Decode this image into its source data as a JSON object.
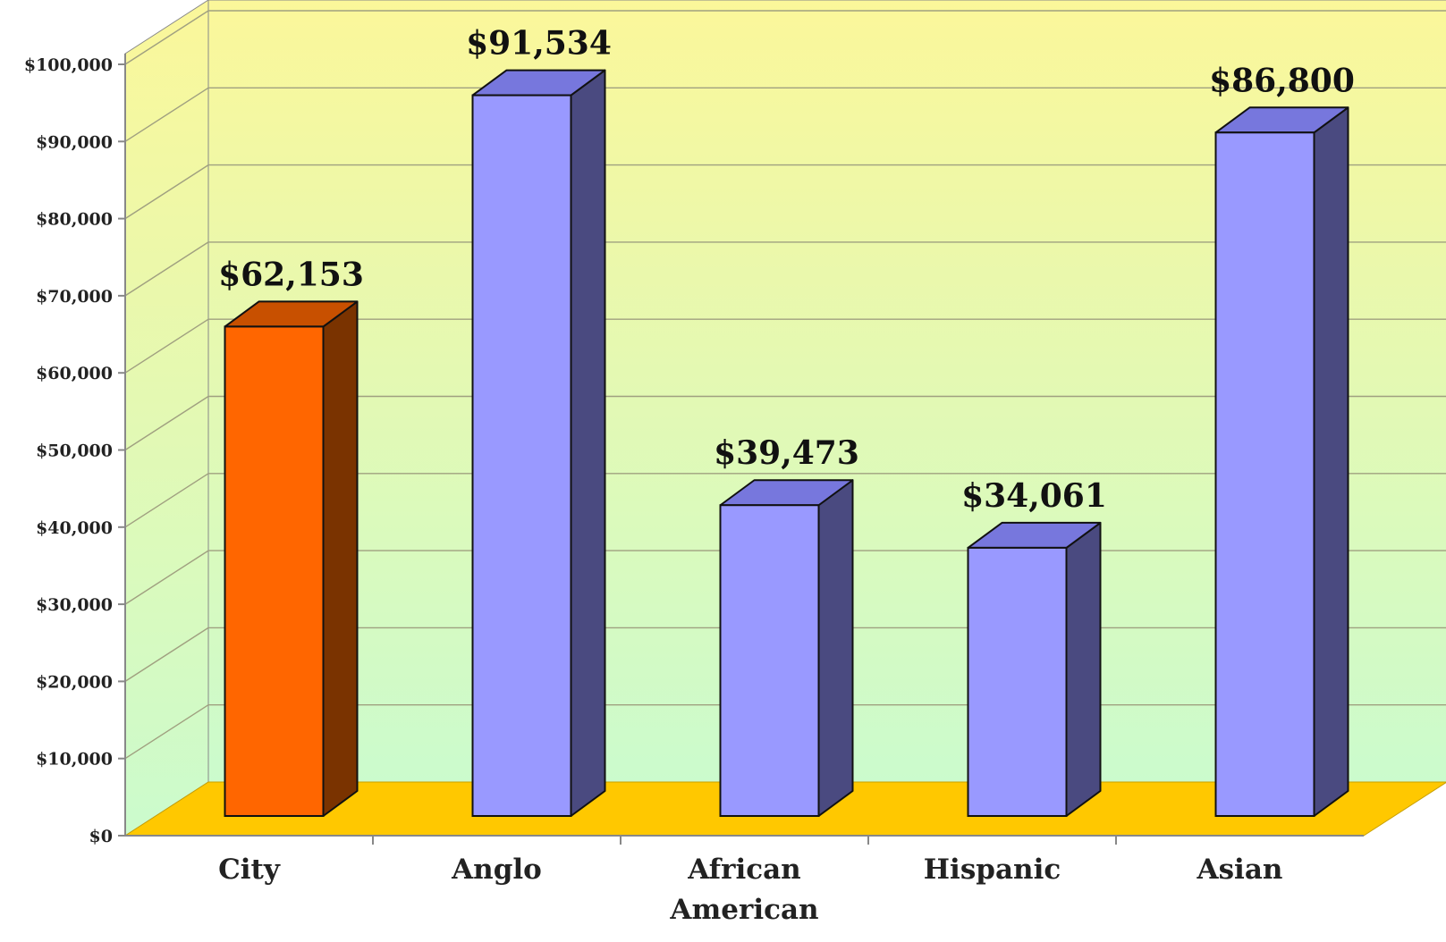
{
  "chart_data": {
    "type": "bar",
    "title": "",
    "xlabel": "",
    "ylabel": "",
    "ylim": [
      0,
      100000
    ],
    "grid": true,
    "categories": [
      "City",
      "Anglo",
      "African American",
      "Hispanic",
      "Asian"
    ],
    "category_lines": [
      [
        "City"
      ],
      [
        "Anglo"
      ],
      [
        "African",
        "American"
      ],
      [
        "Hispanic"
      ],
      [
        "Asian"
      ]
    ],
    "values": [
      62153,
      91534,
      39473,
      34061,
      86800
    ],
    "value_labels": [
      "$62,153",
      "$91,534",
      "$39,473",
      "$34,061",
      "$86,800"
    ],
    "y_ticks": [
      0,
      10000,
      20000,
      30000,
      40000,
      50000,
      60000,
      70000,
      80000,
      90000,
      100000
    ],
    "y_tick_labels": [
      "$0",
      "$10,000",
      "$20,000",
      "$30,000",
      "$40,000",
      "$50,000",
      "$60,000",
      "$70,000",
      "$80,000",
      "$90,000",
      "$100,000"
    ],
    "colors": {
      "highlight_front": "#ff6600",
      "highlight_side": "#7a3300",
      "highlight_top": "#c85000",
      "bar_front": "#9999ff",
      "bar_side": "#4a4a80",
      "bar_top": "#7777dd",
      "floor": "#ffc800",
      "wall_top": "#fbf79a",
      "wall_bottom": "#cbfbcd",
      "gridline": "#a0a080",
      "axis": "#888888"
    },
    "highlight_index": 0
  }
}
